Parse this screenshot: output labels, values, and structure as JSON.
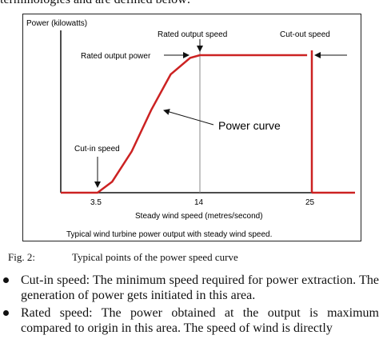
{
  "top_text": "terminologies and are defined below:",
  "figure": {
    "ylabel": "Power (kilowatts)",
    "xlabel": "Steady wind speed (metres/second)",
    "caption": "Typical wind turbine power output with steady wind speed.",
    "annotations": {
      "rated_output_speed": "Rated output speed",
      "cut_out_speed": "Cut-out speed",
      "rated_output_power": "Rated output power",
      "power_curve": "Power curve",
      "cut_in_speed": "Cut-in speed"
    },
    "ticks": [
      "3.5",
      "14",
      "25"
    ]
  },
  "chart_data": {
    "type": "line",
    "title": "",
    "xlabel": "Steady wind speed (metres/second)",
    "ylabel": "Power (kilowatts)",
    "x": [
      0,
      3.5,
      5,
      7,
      9,
      11,
      13,
      14,
      25,
      25,
      28
    ],
    "y": [
      0,
      0,
      0.08,
      0.3,
      0.6,
      0.86,
      0.98,
      1.0,
      1.0,
      0,
      0
    ],
    "xticks": [
      "3.5",
      "14",
      "25"
    ],
    "grid": false
  },
  "fig_label": {
    "number": "Fig. 2:",
    "text": "Typical points of the power speed curve"
  },
  "bullets": [
    {
      "text": "Cut-in speed: The minimum speed required for power extraction. The generation of power gets initiated in this area."
    },
    {
      "text": "Rated speed: The power obtained at the output is maximum compared to origin in this area. The speed of wind is directly"
    }
  ]
}
